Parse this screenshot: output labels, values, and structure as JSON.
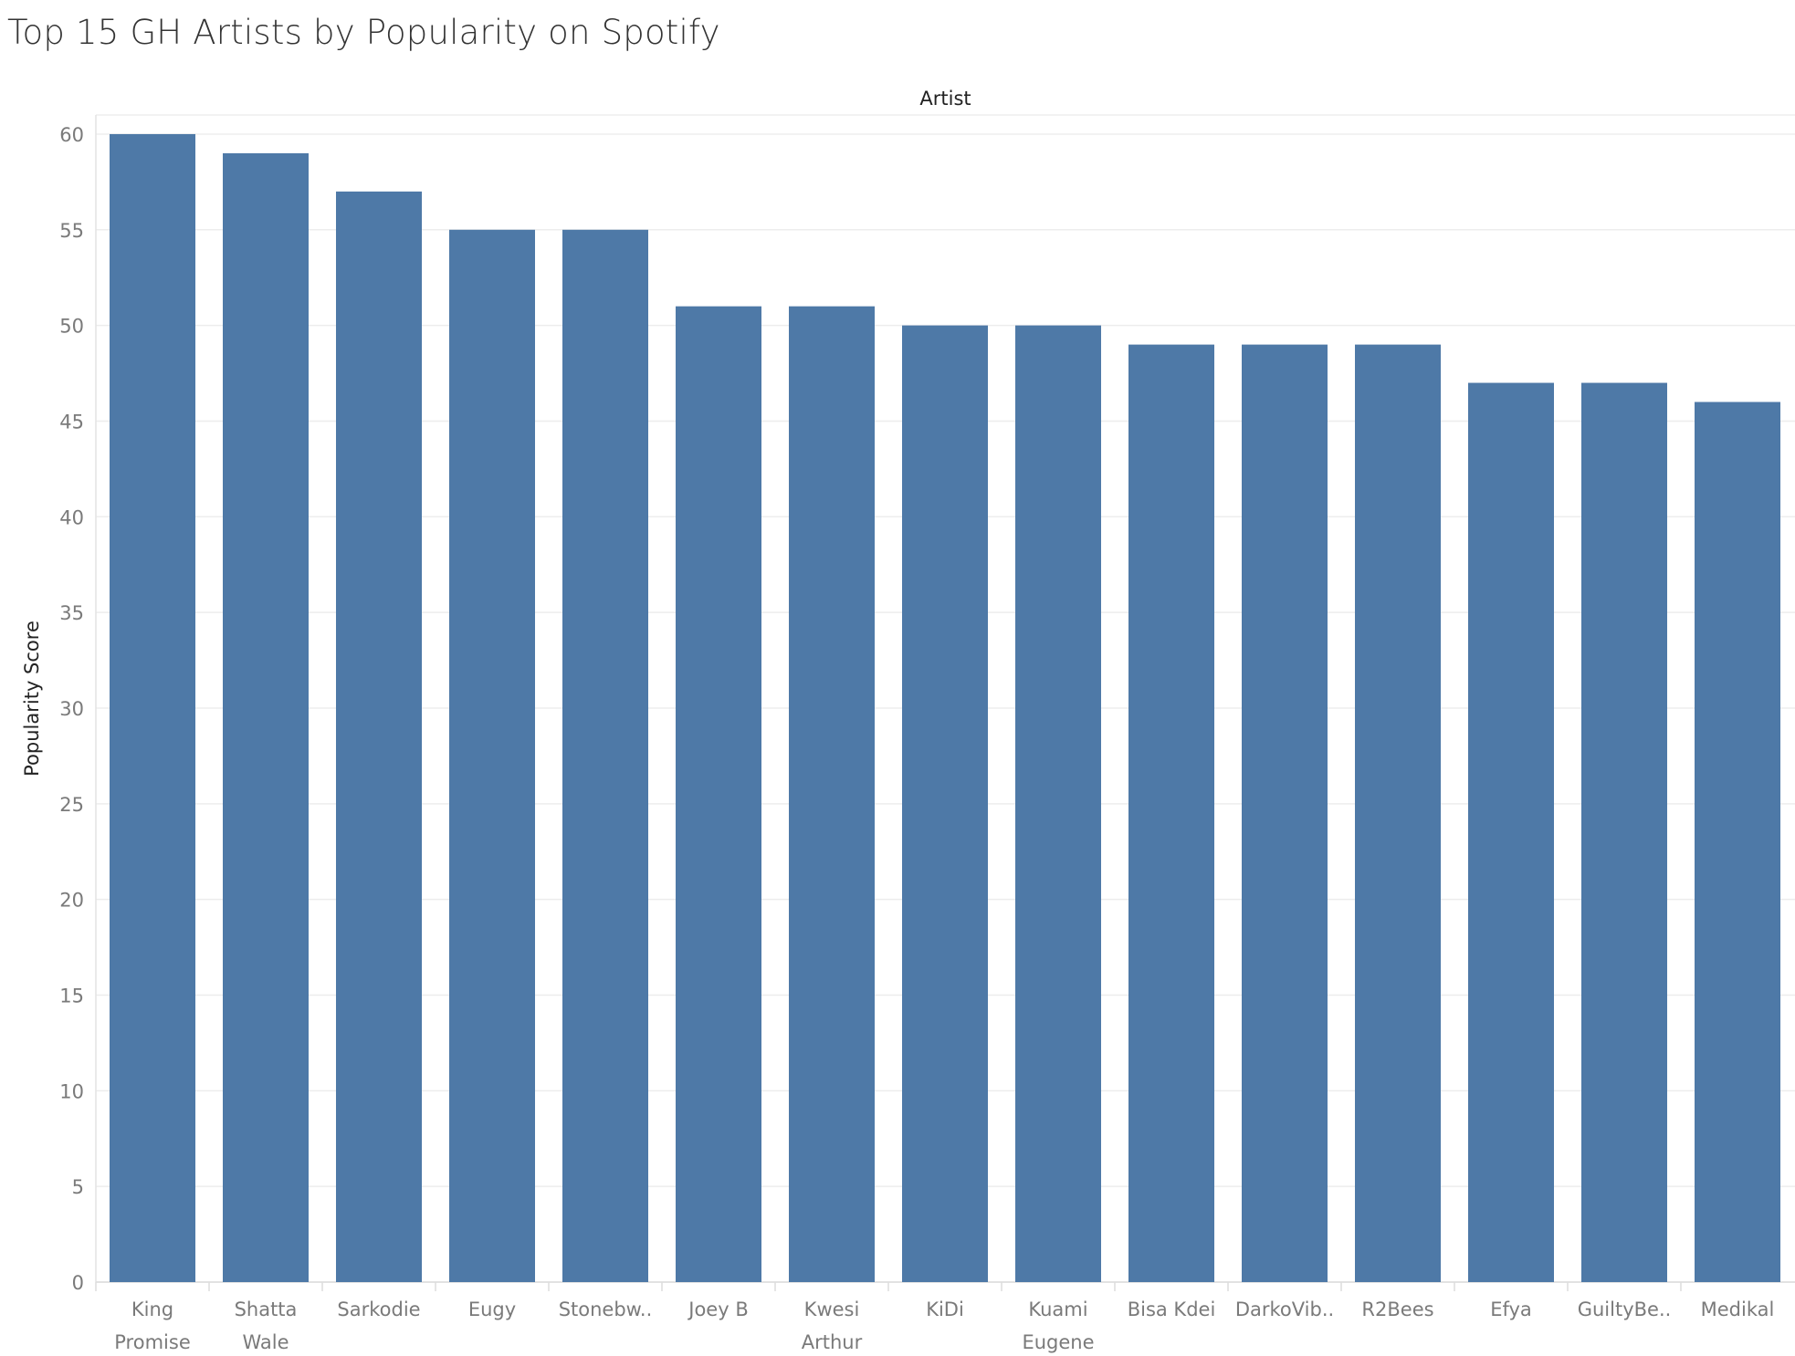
{
  "chart_data": {
    "type": "bar",
    "title": "Top 15 GH Artists by Popularity on Spotify",
    "xlabel": "Artist",
    "ylabel": "Popularity Score",
    "ylim": [
      0,
      60
    ],
    "yticks": [
      0,
      5,
      10,
      15,
      20,
      25,
      30,
      35,
      40,
      45,
      50,
      55,
      60
    ],
    "grid": true,
    "legend": "none",
    "bar_color": "#4e79a7",
    "categories": [
      [
        "King",
        "Promise"
      ],
      [
        "Shatta",
        "Wale"
      ],
      [
        "Sarkodie"
      ],
      [
        "Eugy"
      ],
      [
        "Stonebw.."
      ],
      [
        "Joey B"
      ],
      [
        "Kwesi",
        "Arthur"
      ],
      [
        "KiDi"
      ],
      [
        "Kuami",
        "Eugene"
      ],
      [
        "Bisa Kdei"
      ],
      [
        "DarkoVib.."
      ],
      [
        "R2Bees"
      ],
      [
        "Efya"
      ],
      [
        "GuiltyBe.."
      ],
      [
        "Medikal"
      ]
    ],
    "values": [
      60,
      59,
      57,
      55,
      55,
      51,
      51,
      50,
      50,
      49,
      49,
      49,
      47,
      47,
      46
    ]
  }
}
